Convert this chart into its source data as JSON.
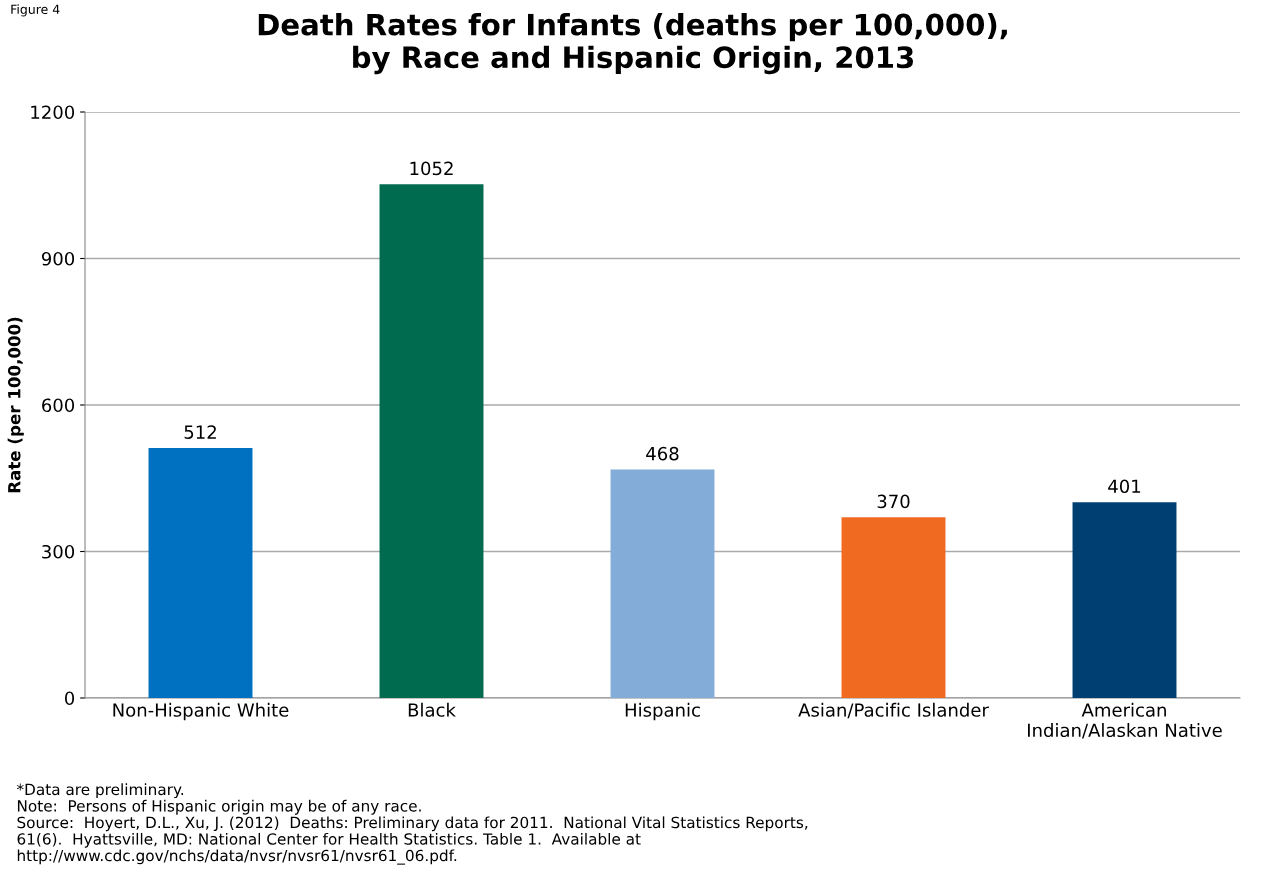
{
  "chart_data": {
    "type": "bar",
    "title": "Death Rates for Infants (deaths per 100,000),\nby Race and Hispanic Origin, 2013",
    "ylabel": "Rate (per 100,000)",
    "categories": [
      "Non-Hispanic White",
      "Black",
      "Hispanic",
      "Asian/Pacific Islander",
      "American\nIndian/Alaskan Native"
    ],
    "values": [
      512,
      1052,
      468,
      370,
      401
    ],
    "colors": [
      "#0070c0",
      "#006b4f",
      "#84acd8",
      "#f06a22",
      "#003f72"
    ],
    "ylim": [
      0,
      1200
    ],
    "yticks": [
      0,
      300,
      600,
      900,
      1200
    ],
    "grid": "y",
    "data_labels": true,
    "annotations": [
      "Figure 4",
      "*Data are preliminary.\nNote:  Persons of Hispanic origin may be of any race.\nSource:  Hoyert, D.L., Xu, J. (2012)  Deaths: Preliminary data for 2011.  National Vital Statistics Reports,\n61(6).  Hyattsville, MD: National Center for Health Statistics. Table 1.  Available at\nhttp://www.cdc.gov/nchs/data/nvsr/nvsr61/nvsr61_06.pdf."
    ]
  }
}
